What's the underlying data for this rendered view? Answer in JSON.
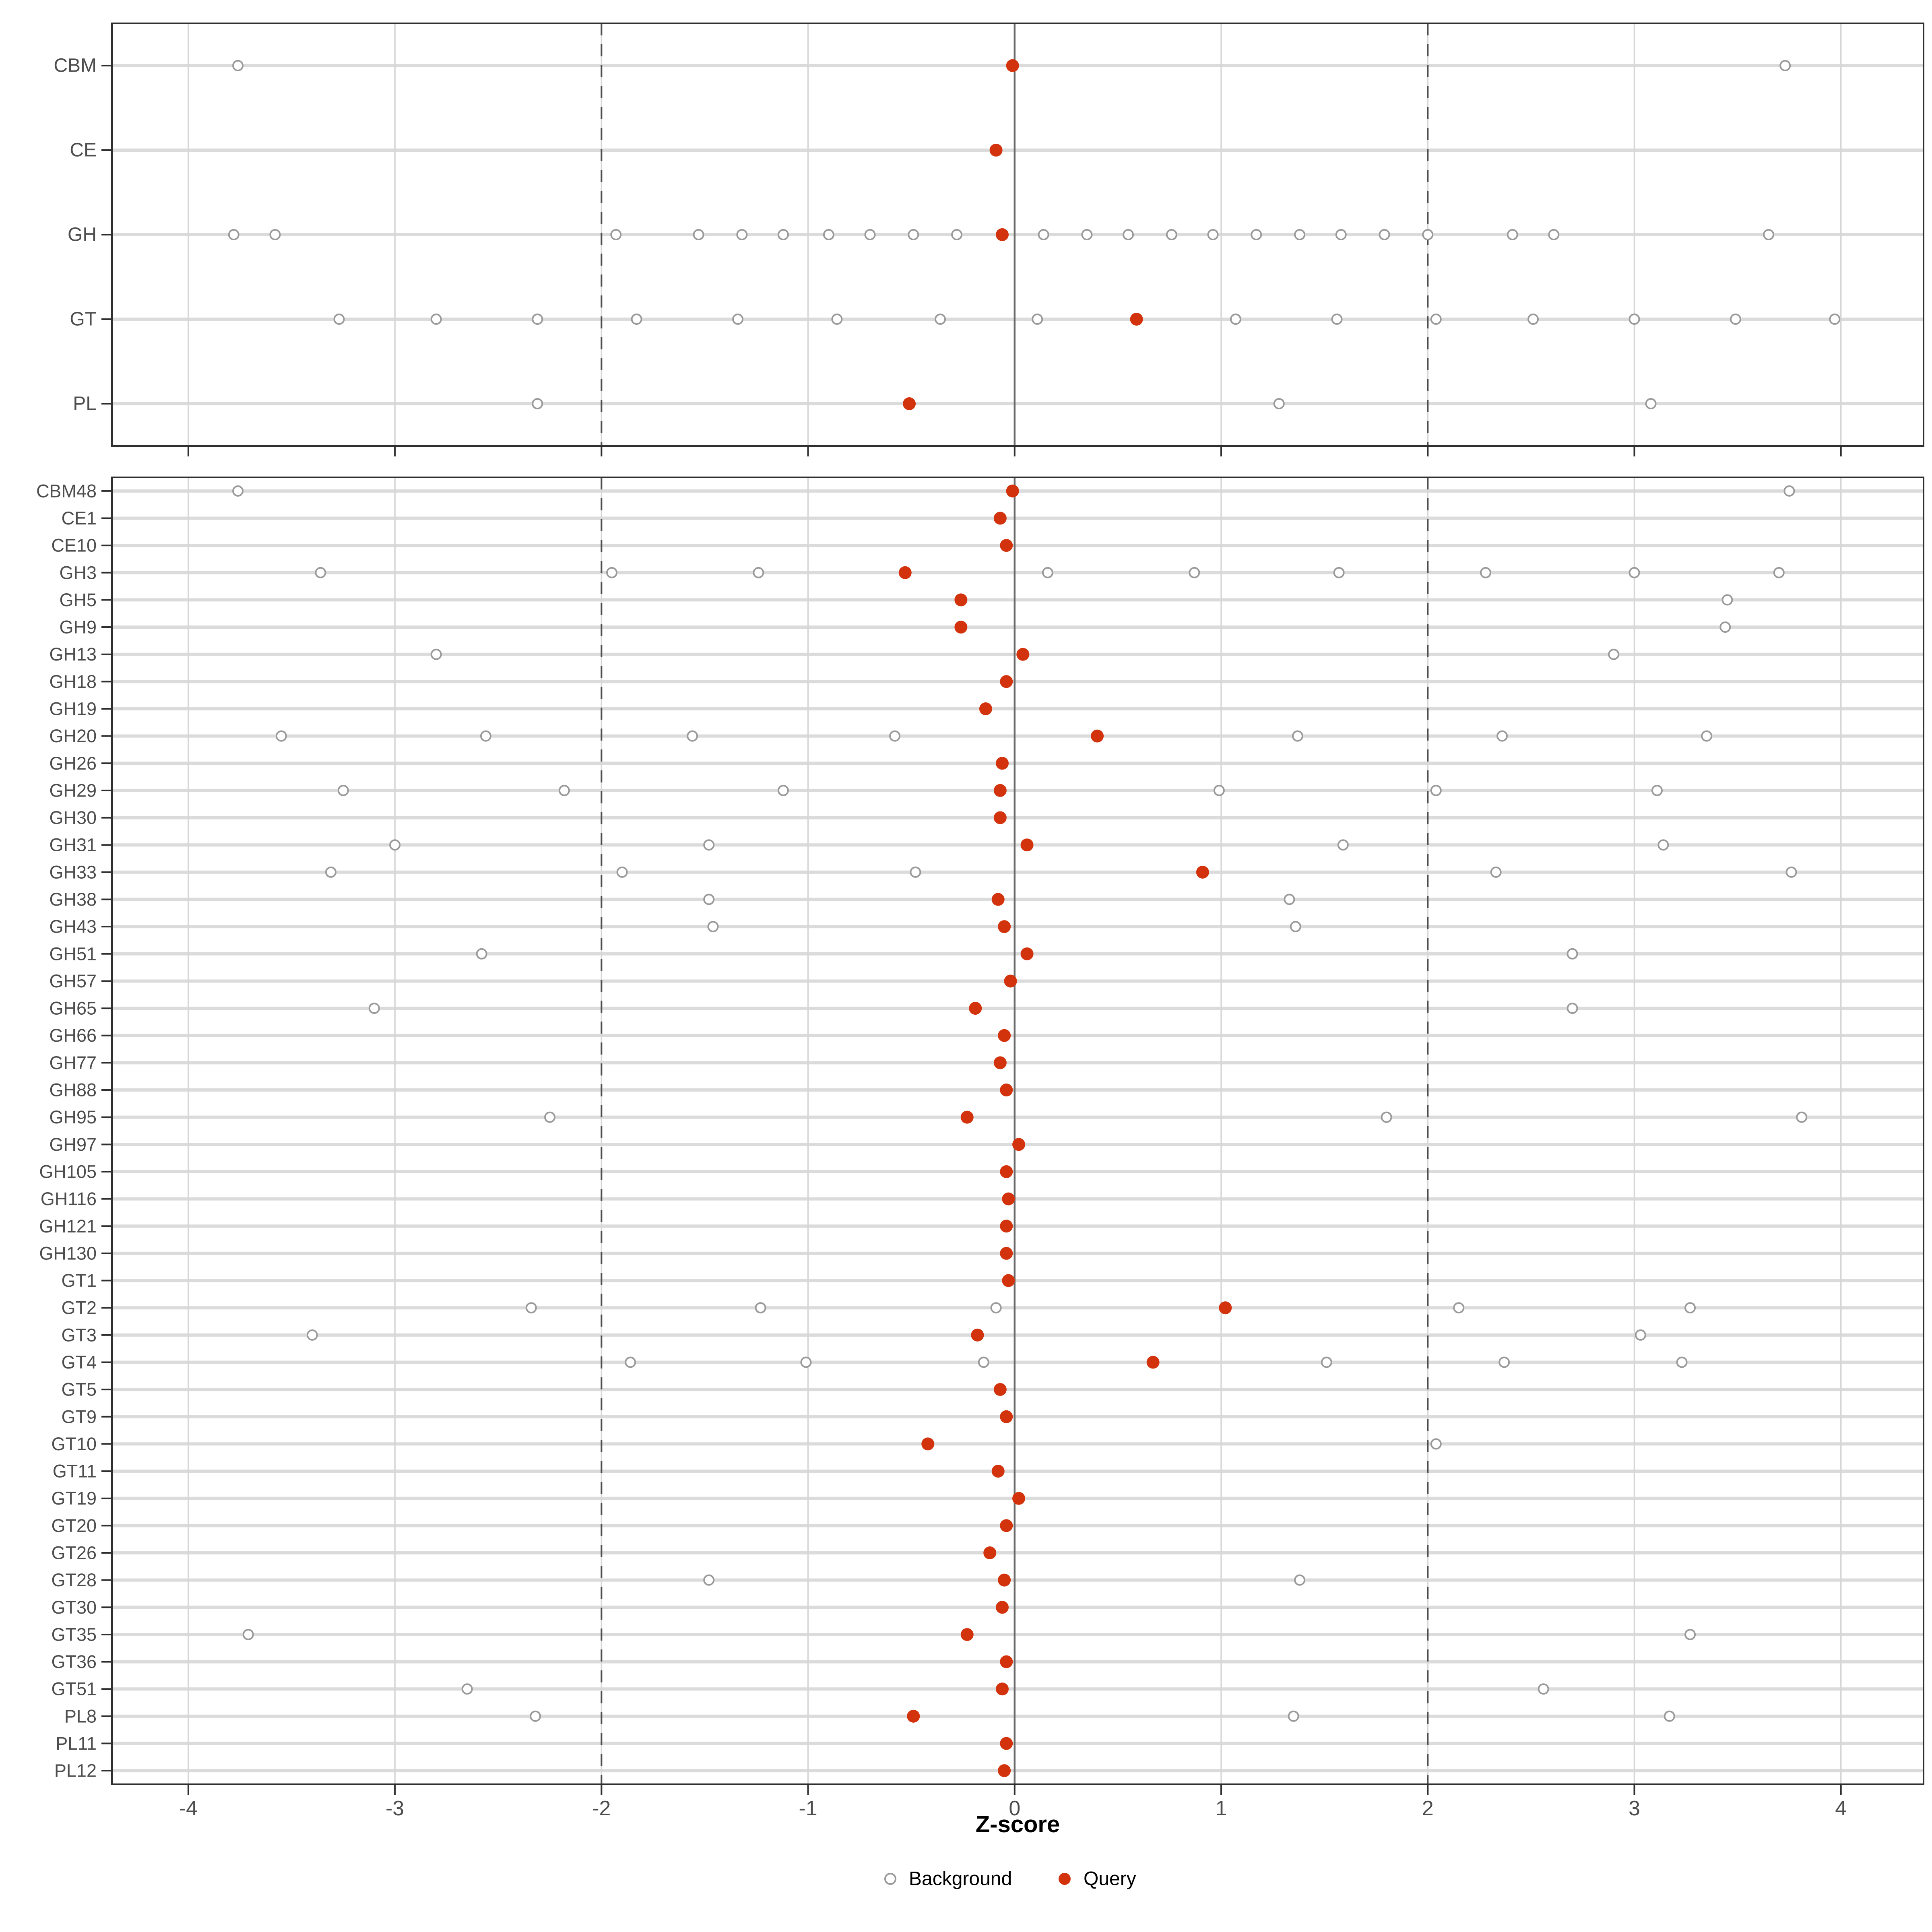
{
  "chart_data": {
    "type": "scatter",
    "title": "",
    "xlabel": "Z-score",
    "xlim": [
      -4.37,
      4.4
    ],
    "x_ticks": [
      -4,
      -3,
      -2,
      -1,
      0,
      1,
      2,
      3,
      4
    ],
    "grid": "on",
    "legend_position": "bottom",
    "reference_lines": {
      "solid_at": 0,
      "dashed_at": [
        -2,
        2
      ]
    },
    "legend": [
      {
        "label": "Background",
        "marker": "open-circle"
      },
      {
        "label": "Query",
        "marker": "filled-circle"
      }
    ],
    "panels": [
      {
        "name": "class-level",
        "rows": [
          {
            "label": "CBM",
            "query": -0.01,
            "background": [
              -3.76,
              3.73
            ]
          },
          {
            "label": "CE",
            "query": -0.09,
            "background": []
          },
          {
            "label": "GH",
            "query": -0.06,
            "background": [
              -3.78,
              -3.58,
              -1.93,
              -1.53,
              -1.32,
              -1.12,
              -0.9,
              -0.7,
              -0.49,
              -0.28,
              0.14,
              0.35,
              0.55,
              0.76,
              0.96,
              1.17,
              1.38,
              1.58,
              1.79,
              2.0,
              2.41,
              2.61,
              3.65
            ]
          },
          {
            "label": "GT",
            "query": 0.59,
            "background": [
              -3.27,
              -2.8,
              -2.31,
              -1.83,
              -1.34,
              -0.86,
              -0.36,
              0.11,
              1.07,
              1.56,
              2.04,
              2.51,
              3.0,
              3.49,
              3.97
            ]
          },
          {
            "label": "PL",
            "query": -0.51,
            "background": [
              -2.31,
              1.28,
              3.08
            ]
          }
        ]
      },
      {
        "name": "family-level",
        "rows": [
          {
            "label": "CBM48",
            "query": -0.01,
            "background": [
              -3.76,
              3.75
            ]
          },
          {
            "label": "CE1",
            "query": -0.07,
            "background": []
          },
          {
            "label": "CE10",
            "query": -0.04,
            "background": []
          },
          {
            "label": "GH3",
            "query": -0.53,
            "background": [
              -3.36,
              -1.95,
              -1.24,
              0.16,
              0.87,
              1.57,
              2.28,
              3.0,
              3.7
            ]
          },
          {
            "label": "GH5",
            "query": -0.26,
            "background": [
              3.45
            ]
          },
          {
            "label": "GH9",
            "query": -0.26,
            "background": [
              3.44
            ]
          },
          {
            "label": "GH13",
            "query": 0.04,
            "background": [
              -2.8,
              2.9
            ]
          },
          {
            "label": "GH18",
            "query": -0.04,
            "background": []
          },
          {
            "label": "GH19",
            "query": -0.14,
            "background": []
          },
          {
            "label": "GH20",
            "query": 0.4,
            "background": [
              -3.55,
              -2.56,
              -1.56,
              -0.58,
              1.37,
              2.36,
              3.35
            ]
          },
          {
            "label": "GH26",
            "query": -0.06,
            "background": []
          },
          {
            "label": "GH29",
            "query": -0.07,
            "background": [
              -3.25,
              -2.18,
              -1.12,
              0.99,
              2.04,
              3.11
            ]
          },
          {
            "label": "GH30",
            "query": -0.07,
            "background": []
          },
          {
            "label": "GH31",
            "query": 0.06,
            "background": [
              -3.0,
              -1.48,
              1.59,
              3.14
            ]
          },
          {
            "label": "GH33",
            "query": 0.91,
            "background": [
              -3.31,
              -1.9,
              -0.48,
              2.33,
              3.76
            ]
          },
          {
            "label": "GH38",
            "query": -0.08,
            "background": [
              -1.48,
              1.33
            ]
          },
          {
            "label": "GH43",
            "query": -0.05,
            "background": [
              -1.46,
              1.36
            ]
          },
          {
            "label": "GH51",
            "query": 0.06,
            "background": [
              -2.58,
              2.7
            ]
          },
          {
            "label": "GH57",
            "query": -0.02,
            "background": []
          },
          {
            "label": "GH65",
            "query": -0.19,
            "background": [
              -3.1,
              2.7
            ]
          },
          {
            "label": "GH66",
            "query": -0.05,
            "background": []
          },
          {
            "label": "GH77",
            "query": -0.07,
            "background": []
          },
          {
            "label": "GH88",
            "query": -0.04,
            "background": []
          },
          {
            "label": "GH95",
            "query": -0.23,
            "background": [
              -2.25,
              1.8,
              3.81
            ]
          },
          {
            "label": "GH97",
            "query": 0.02,
            "background": []
          },
          {
            "label": "GH105",
            "query": -0.04,
            "background": []
          },
          {
            "label": "GH116",
            "query": -0.03,
            "background": []
          },
          {
            "label": "GH121",
            "query": -0.04,
            "background": []
          },
          {
            "label": "GH130",
            "query": -0.04,
            "background": []
          },
          {
            "label": "GT1",
            "query": -0.03,
            "background": []
          },
          {
            "label": "GT2",
            "query": 1.02,
            "background": [
              -2.34,
              -1.23,
              -0.09,
              2.15,
              3.27
            ]
          },
          {
            "label": "GT3",
            "query": -0.18,
            "background": [
              -3.4,
              3.03
            ]
          },
          {
            "label": "GT4",
            "query": 0.67,
            "background": [
              -1.86,
              -1.01,
              -0.15,
              1.51,
              2.37,
              3.23
            ]
          },
          {
            "label": "GT5",
            "query": -0.07,
            "background": []
          },
          {
            "label": "GT9",
            "query": -0.04,
            "background": []
          },
          {
            "label": "GT10",
            "query": -0.42,
            "background": [
              2.04
            ]
          },
          {
            "label": "GT11",
            "query": -0.08,
            "background": []
          },
          {
            "label": "GT19",
            "query": 0.02,
            "background": []
          },
          {
            "label": "GT20",
            "query": -0.04,
            "background": []
          },
          {
            "label": "GT26",
            "query": -0.12,
            "background": []
          },
          {
            "label": "GT28",
            "query": -0.05,
            "background": [
              -1.48,
              1.38
            ]
          },
          {
            "label": "GT30",
            "query": -0.06,
            "background": []
          },
          {
            "label": "GT35",
            "query": -0.23,
            "background": [
              -3.71,
              3.27
            ]
          },
          {
            "label": "GT36",
            "query": -0.04,
            "background": []
          },
          {
            "label": "GT51",
            "query": -0.06,
            "background": [
              -2.65,
              2.56
            ]
          },
          {
            "label": "PL8",
            "query": -0.49,
            "background": [
              -2.32,
              1.35,
              3.17
            ]
          },
          {
            "label": "PL11",
            "query": -0.04,
            "background": []
          },
          {
            "label": "PL12",
            "query": -0.05,
            "background": []
          }
        ]
      }
    ]
  },
  "colors": {
    "query": "#d3330c",
    "background_stroke": "#9a9a9a",
    "row_gridline": "#dbdbdb",
    "v_gridline": "#d6d6d6",
    "dashed_line": "#4d4d4d",
    "zero_line": "#6b6b6b",
    "panel_border": "#2f2f2f",
    "tick": "#2f2f2f",
    "axis_text": "#4d4d4d",
    "title_text": "#000000"
  }
}
